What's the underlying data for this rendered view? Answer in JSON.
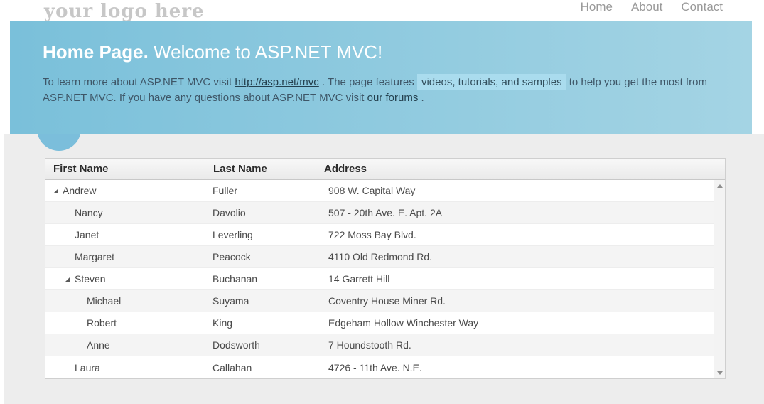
{
  "header": {
    "logo": "your logo here",
    "nav": [
      {
        "label": "Home"
      },
      {
        "label": "About"
      },
      {
        "label": "Contact"
      }
    ]
  },
  "hero": {
    "title_bold": "Home Page.",
    "title_rest": " Welcome to ASP.NET MVC!",
    "p": {
      "t1": "To learn more about ASP.NET MVC visit ",
      "link1": "http://asp.net/mvc",
      "t2": " . The page features ",
      "mark": "videos, tutorials, and samples",
      "t3": " to help you get the most from ASP.NET MVC. If you have any questions about ASP.NET MVC visit ",
      "link2": "our forums",
      "t4": " ."
    }
  },
  "table": {
    "columns": [
      "First Name",
      "Last Name",
      "Address"
    ],
    "rows": [
      {
        "first": "Andrew",
        "last": "Fuller",
        "address": "908 W. Capital Way",
        "level": 0,
        "expandable": true,
        "expanded": true
      },
      {
        "first": "Nancy",
        "last": "Davolio",
        "address": "507 - 20th Ave. E. Apt. 2A",
        "level": 1,
        "expandable": false
      },
      {
        "first": "Janet",
        "last": "Leverling",
        "address": "722 Moss Bay Blvd.",
        "level": 1,
        "expandable": false
      },
      {
        "first": "Margaret",
        "last": "Peacock",
        "address": "4110 Old Redmond Rd.",
        "level": 1,
        "expandable": false
      },
      {
        "first": "Steven",
        "last": "Buchanan",
        "address": "14 Garrett Hill",
        "level": 1,
        "expandable": true,
        "expanded": true
      },
      {
        "first": "Michael",
        "last": "Suyama",
        "address": "Coventry House Miner Rd.",
        "level": 2,
        "expandable": false
      },
      {
        "first": "Robert",
        "last": "King",
        "address": "Edgeham Hollow Winchester Way",
        "level": 2,
        "expandable": false
      },
      {
        "first": "Anne",
        "last": "Dodsworth",
        "address": "7 Houndstooth Rd.",
        "level": 2,
        "expandable": false
      },
      {
        "first": "Laura",
        "last": "Callahan",
        "address": "4726 - 11th Ave. N.E.",
        "level": 1,
        "expandable": false
      }
    ]
  },
  "colors": {
    "hero_gradient_start": "#7ac0da",
    "hero_gradient_end": "#a4d4e4",
    "circle": "#7bbedb",
    "mark_background": "#aadcee",
    "page_background": "#ededed",
    "logo_text": "#c7c7c7",
    "nav_text": "#999999",
    "hero_text": "#3e5667",
    "grid_text": "#4a4a4a"
  }
}
